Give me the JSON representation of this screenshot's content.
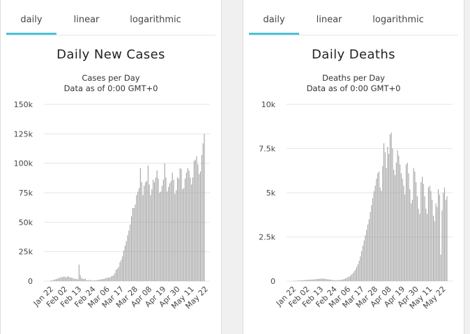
{
  "panels": [
    {
      "tabs": [
        "daily",
        "linear",
        "logarithmic"
      ],
      "active_tab": 0,
      "title": "Daily New Cases",
      "subtitle1": "Cases per Day",
      "subtitle2": "Data as of 0:00 GMT+0"
    },
    {
      "tabs": [
        "daily",
        "linear",
        "logarithmic"
      ],
      "active_tab": 0,
      "title": "Daily Deaths",
      "subtitle1": "Deaths per Day",
      "subtitle2": "Data as of 0:00 GMT+0"
    }
  ],
  "colors": {
    "tab_active": "#4cc2d9",
    "bar": "#9a9a9a",
    "grid": "#e6e6e6"
  },
  "chart_data": [
    {
      "type": "bar",
      "title": "Daily New Cases",
      "ylabel": "Cases per Day",
      "ylim": [
        0,
        150000
      ],
      "yticks": [
        0,
        25000,
        50000,
        75000,
        100000,
        125000,
        150000
      ],
      "ytick_labels": [
        "0",
        "25k",
        "50k",
        "75k",
        "100k",
        "125k",
        "150k"
      ],
      "x_start": "Jan 22",
      "xtick_labels": [
        "Jan 22",
        "Feb 02",
        "Feb 13",
        "Feb 24",
        "Mar 06",
        "Mar 17",
        "Mar 28",
        "Apr 08",
        "Apr 19",
        "Apr 30",
        "May 11",
        "May 22"
      ],
      "grid": true,
      "values": [
        550,
        650,
        850,
        1300,
        1700,
        2000,
        2700,
        2600,
        3700,
        3200,
        3900,
        3700,
        3100,
        4000,
        3700,
        3200,
        2900,
        2700,
        2100,
        2000,
        1900,
        1500,
        14000,
        5100,
        2600,
        2000,
        1800,
        2000,
        700,
        900,
        600,
        1200,
        400,
        550,
        600,
        700,
        800,
        1100,
        1300,
        1400,
        1600,
        1800,
        2100,
        2500,
        2700,
        3000,
        3100,
        3800,
        4500,
        4900,
        6800,
        9600,
        10500,
        12000,
        16000,
        18000,
        21000,
        26000,
        30000,
        34000,
        39000,
        43000,
        48000,
        55000,
        62000,
        62000,
        65000,
        73000,
        76000,
        79000,
        96000,
        84000,
        73000,
        81000,
        84000,
        85000,
        98000,
        82000,
        73000,
        78000,
        86000,
        84000,
        88000,
        94000,
        87000,
        75000,
        76000,
        81000,
        86000,
        100000,
        88000,
        76000,
        80000,
        83000,
        85000,
        92000,
        86000,
        74000,
        77000,
        88000,
        87000,
        96000,
        95000,
        78000,
        79000,
        87000,
        92000,
        96000,
        94000,
        88000,
        82000,
        88000,
        102000,
        103000,
        106000,
        99000,
        91000,
        93000,
        107000,
        117000,
        125000
      ]
    },
    {
      "type": "bar",
      "title": "Daily Deaths",
      "ylabel": "Deaths per Day",
      "ylim": [
        0,
        10000
      ],
      "yticks": [
        0,
        2500,
        5000,
        7500,
        10000
      ],
      "ytick_labels": [
        "0",
        "2.5k",
        "5k",
        "7.5k",
        "10k"
      ],
      "x_start": "Jan 22",
      "xtick_labels": [
        "Jan 22",
        "Feb 02",
        "Feb 13",
        "Feb 24",
        "Mar 06",
        "Mar 17",
        "Mar 28",
        "Apr 08",
        "Apr 19",
        "Apr 30",
        "May 11",
        "May 22"
      ],
      "grid": true,
      "values": [
        10,
        15,
        20,
        25,
        30,
        35,
        40,
        45,
        55,
        60,
        65,
        70,
        75,
        80,
        85,
        90,
        95,
        100,
        110,
        120,
        130,
        125,
        140,
        145,
        150,
        130,
        120,
        110,
        100,
        90,
        80,
        70,
        60,
        50,
        45,
        50,
        55,
        60,
        70,
        80,
        100,
        120,
        150,
        180,
        220,
        260,
        300,
        380,
        450,
        550,
        650,
        800,
        950,
        1150,
        1400,
        1700,
        2000,
        2300,
        2600,
        2900,
        3200,
        3500,
        3900,
        4300,
        4700,
        5100,
        5400,
        5800,
        6100,
        6200,
        5300,
        5100,
        6500,
        7800,
        7300,
        6400,
        7600,
        7200,
        8300,
        8400,
        7500,
        6300,
        6000,
        6700,
        7400,
        7100,
        6600,
        6100,
        5800,
        5400,
        4900,
        6600,
        6700,
        6100,
        5200,
        4400,
        4600,
        6400,
        6200,
        5600,
        4800,
        4100,
        3800,
        5600,
        5900,
        5500,
        4800,
        4100,
        3800,
        5300,
        5400,
        5100,
        4600,
        3700,
        3400,
        4400,
        4200,
        5200,
        4900,
        1500,
        4000,
        5000,
        5300,
        4600,
        4800
      ]
    }
  ]
}
